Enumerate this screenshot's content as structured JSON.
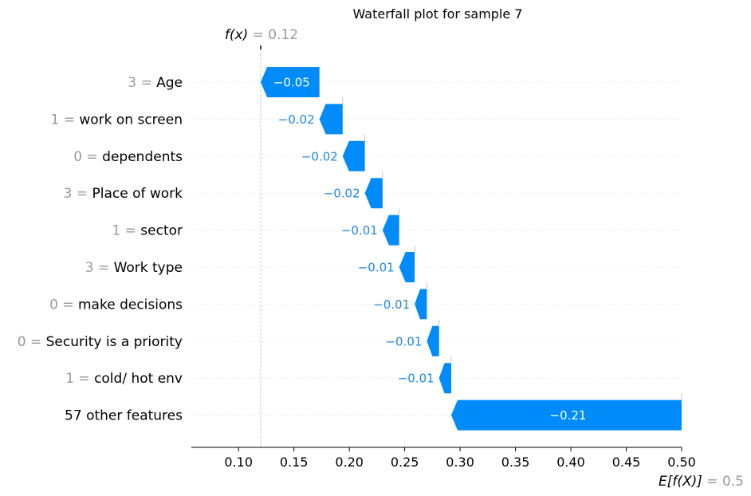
{
  "chart_data": {
    "type": "waterfall",
    "title": "Waterfall plot for sample 7",
    "fx": {
      "label": "f(x)",
      "eq": " = 0.12",
      "value": 0.12
    },
    "efx": {
      "label": "E[f(X)]",
      "eq": " = 0.5",
      "value": 0.5
    },
    "features": [
      {
        "value": "3",
        "name": "Age",
        "contribution": -0.05,
        "start": 0.173,
        "end": 0.12,
        "label": "−0.05"
      },
      {
        "value": "1",
        "name": "work on screen",
        "contribution": -0.02,
        "start": 0.194,
        "end": 0.173,
        "label": "−0.02"
      },
      {
        "value": "0",
        "name": "dependents",
        "contribution": -0.02,
        "start": 0.214,
        "end": 0.194,
        "label": "−0.02"
      },
      {
        "value": "3",
        "name": "Place of work",
        "contribution": -0.02,
        "start": 0.23,
        "end": 0.214,
        "label": "−0.02"
      },
      {
        "value": "1",
        "name": "sector",
        "contribution": -0.01,
        "start": 0.245,
        "end": 0.23,
        "label": "−0.01"
      },
      {
        "value": "3",
        "name": "Work type",
        "contribution": -0.01,
        "start": 0.259,
        "end": 0.245,
        "label": "−0.01"
      },
      {
        "value": "0",
        "name": "make decisions",
        "contribution": -0.01,
        "start": 0.27,
        "end": 0.259,
        "label": "−0.01"
      },
      {
        "value": "0",
        "name": "Security is a priority",
        "contribution": -0.01,
        "start": 0.281,
        "end": 0.27,
        "label": "−0.01"
      },
      {
        "value": "1",
        "name": "cold/ hot env",
        "contribution": -0.01,
        "start": 0.292,
        "end": 0.281,
        "label": "−0.01"
      },
      {
        "value": "",
        "name": "57 other features",
        "contribution": -0.21,
        "start": 0.5,
        "end": 0.292,
        "label": "−0.21"
      }
    ],
    "xticks": [
      0.1,
      0.15,
      0.2,
      0.25,
      0.3,
      0.35,
      0.4,
      0.45,
      0.5
    ],
    "xtick_labels": [
      "0.10",
      "0.15",
      "0.20",
      "0.25",
      "0.30",
      "0.35",
      "0.40",
      "0.45",
      "0.50"
    ],
    "xlim": [
      0.057,
      0.5
    ],
    "negative_color": "#008BFB",
    "negative_text_color": "#1E88E5",
    "grid": "dotted horizontal"
  }
}
